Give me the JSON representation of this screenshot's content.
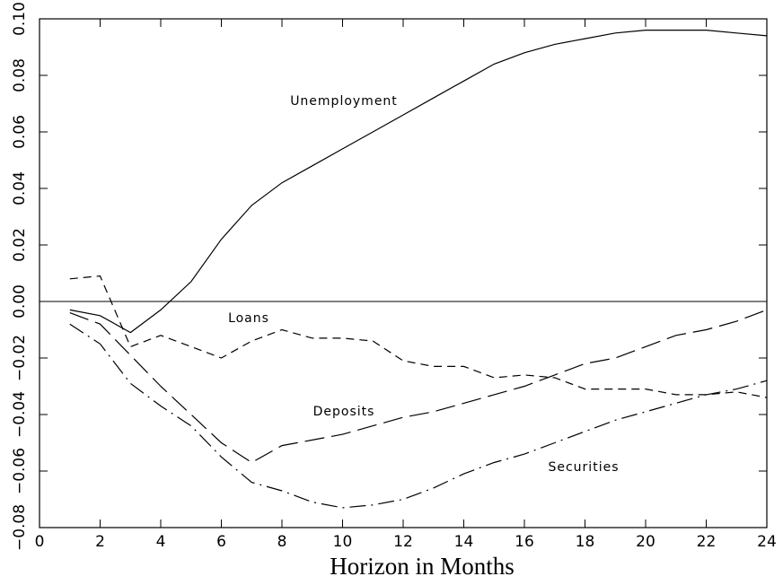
{
  "chart_data": {
    "type": "line",
    "xlabel": "Horizon in Months",
    "x": [
      1,
      2,
      3,
      4,
      5,
      6,
      7,
      8,
      9,
      10,
      11,
      12,
      13,
      14,
      15,
      16,
      17,
      18,
      19,
      20,
      21,
      22,
      23,
      24
    ],
    "series": [
      {
        "name": "Unemployment",
        "color": "#000000",
        "dash": "solid",
        "values": [
          -0.003,
          -0.005,
          -0.011,
          -0.003,
          0.007,
          0.022,
          0.034,
          0.042,
          0.048,
          0.054,
          0.06,
          0.066,
          0.072,
          0.078,
          0.084,
          0.088,
          0.091,
          0.093,
          0.095,
          0.096,
          0.096,
          0.096,
          0.095,
          0.094
        ]
      },
      {
        "name": "Loans",
        "color": "#000000",
        "dash": "short",
        "values": [
          0.008,
          0.009,
          -0.016,
          -0.012,
          -0.016,
          -0.02,
          -0.014,
          -0.01,
          -0.013,
          -0.013,
          -0.014,
          -0.021,
          -0.023,
          -0.023,
          -0.027,
          -0.026,
          -0.027,
          -0.031,
          -0.031,
          -0.031,
          -0.033,
          -0.033,
          -0.032,
          -0.034
        ]
      },
      {
        "name": "Deposits",
        "color": "#000000",
        "dash": "long",
        "values": [
          -0.004,
          -0.008,
          -0.019,
          -0.03,
          -0.04,
          -0.05,
          -0.057,
          -0.051,
          -0.049,
          -0.047,
          -0.044,
          -0.041,
          -0.039,
          -0.036,
          -0.033,
          -0.03,
          -0.026,
          -0.022,
          -0.02,
          -0.016,
          -0.012,
          -0.01,
          -0.007,
          -0.003
        ]
      },
      {
        "name": "Securities",
        "color": "#000000",
        "dash": "dashdot",
        "values": [
          -0.008,
          -0.015,
          -0.029,
          -0.037,
          -0.044,
          -0.055,
          -0.064,
          -0.067,
          -0.071,
          -0.073,
          -0.072,
          -0.07,
          -0.066,
          -0.061,
          -0.057,
          -0.054,
          -0.05,
          -0.046,
          -0.042,
          -0.039,
          -0.036,
          -0.033,
          -0.031,
          -0.028
        ]
      }
    ],
    "xlim": [
      0,
      24
    ],
    "xticks": [
      0,
      2,
      4,
      6,
      8,
      10,
      12,
      14,
      16,
      18,
      20,
      22,
      24
    ],
    "ylim": [
      -0.08,
      0.1
    ],
    "yticks": [
      {
        "value": -0.08,
        "label": "−0.08"
      },
      {
        "value": -0.06,
        "label": "−0.06"
      },
      {
        "value": -0.04,
        "label": "−0.04"
      },
      {
        "value": -0.02,
        "label": "−0.02"
      },
      {
        "value": 0,
        "label": "0.00"
      },
      {
        "value": 0.02,
        "label": "0.02"
      },
      {
        "value": 0.04,
        "label": "0.04"
      },
      {
        "value": 0.06,
        "label": "0.06"
      },
      {
        "value": 0.08,
        "label": "0.08"
      },
      {
        "value": 0.1,
        "label": "0.10"
      }
    ],
    "grid": false
  }
}
